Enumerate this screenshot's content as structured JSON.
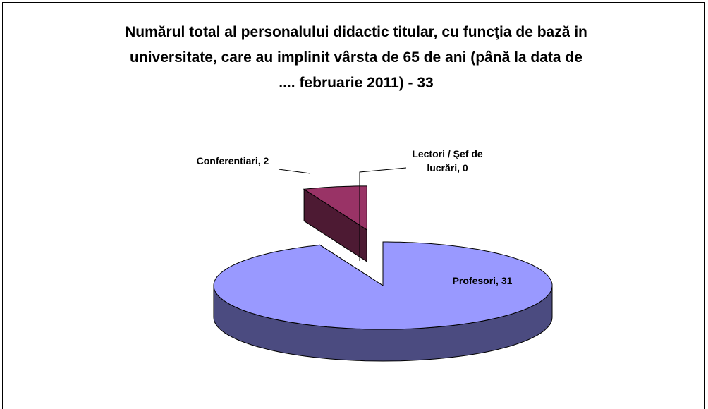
{
  "chart_data": {
    "type": "pie",
    "title": "Numărul total al personalului didactic titular, cu funcţia de bază in universitate, care au implinit vârsta de 65 de ani (până la data de .... februarie 2011) - 33",
    "values": [
      31,
      2,
      0
    ],
    "value_labels": [
      "Profesori, 31",
      "Conferentiari, 2",
      "Lectori / Şef de lucrări, 0"
    ],
    "colors": [
      "#9999ff",
      "#993366",
      "#ffffcc"
    ],
    "side_colors": [
      "#4b4b80",
      "#4d1a33",
      "#808066"
    ]
  }
}
